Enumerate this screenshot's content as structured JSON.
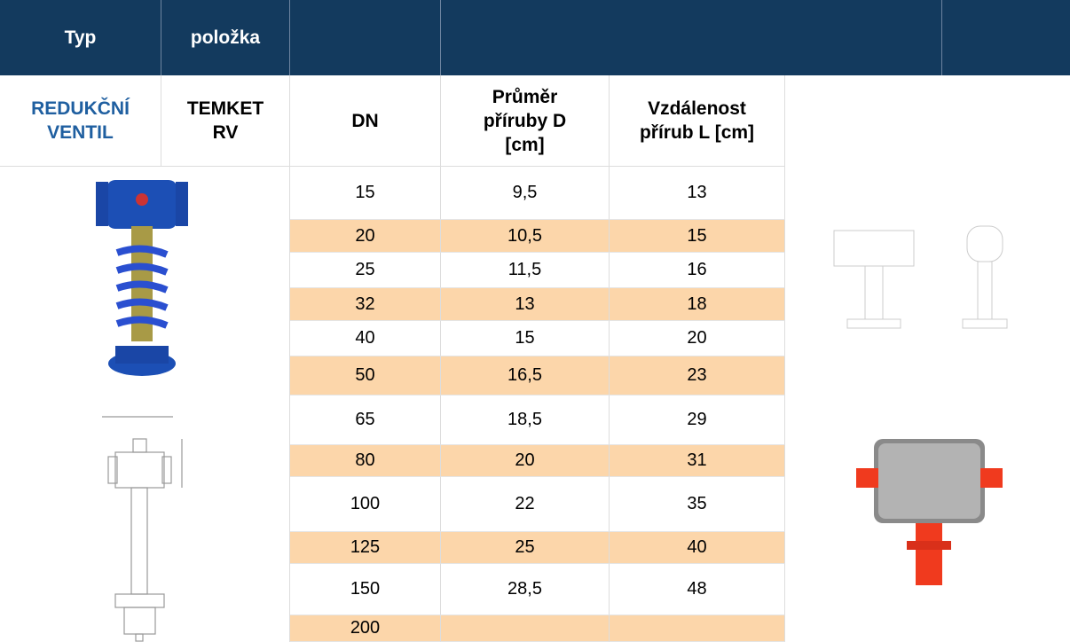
{
  "header": {
    "cells": [
      "Typ",
      "položka"
    ]
  },
  "product": {
    "type": "REDUKČNÍ VENTIL",
    "item": "TEMKET RV"
  },
  "table": {
    "columns": [
      "DN",
      "Průměr příruby D [cm]",
      "Vzdálenost přírub L [cm]"
    ],
    "rows": [
      [
        "15",
        "9,5",
        "13"
      ],
      [
        "20",
        "10,5",
        "15"
      ],
      [
        "25",
        "11,5",
        "16"
      ],
      [
        "32",
        "13",
        "18"
      ],
      [
        "40",
        "15",
        "20"
      ],
      [
        "50",
        "16,5",
        "23"
      ],
      [
        "65",
        "18,5",
        "29"
      ],
      [
        "80",
        "20",
        "31"
      ],
      [
        "100",
        "22",
        "35"
      ],
      [
        "125",
        "25",
        "40"
      ],
      [
        "150",
        "28,5",
        "48"
      ],
      [
        "200"
      ]
    ]
  }
}
